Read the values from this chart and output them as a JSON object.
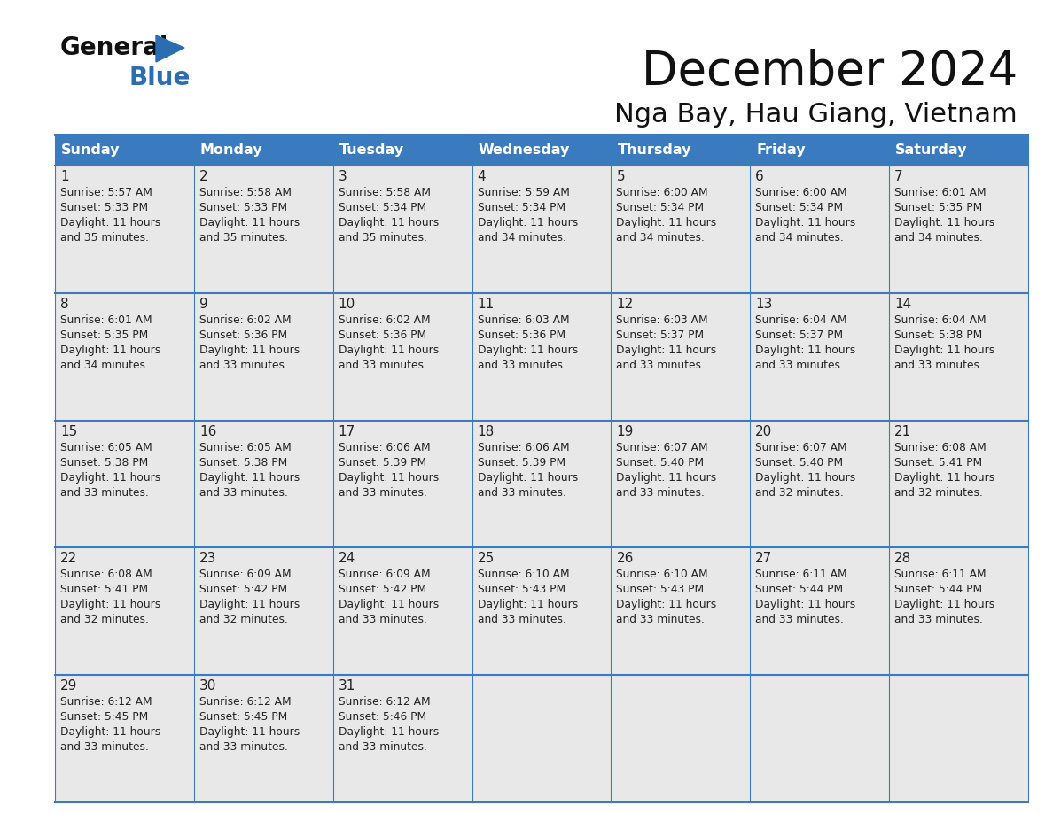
{
  "title": "December 2024",
  "subtitle": "Nga Bay, Hau Giang, Vietnam",
  "header_color": "#3a7bbf",
  "header_text_color": "#ffffff",
  "cell_bg_light": "#e8e8e8",
  "cell_bg_white": "#ffffff",
  "border_color": "#3a7bbf",
  "text_color": "#222222",
  "logo_black": "#111111",
  "logo_blue": "#2a6db0",
  "days_of_week": [
    "Sunday",
    "Monday",
    "Tuesday",
    "Wednesday",
    "Thursday",
    "Friday",
    "Saturday"
  ],
  "calendar_data": [
    [
      {
        "day": 1,
        "sunrise": "5:57 AM",
        "sunset": "5:33 PM",
        "daylight": "11 hours and 35 minutes."
      },
      {
        "day": 2,
        "sunrise": "5:58 AM",
        "sunset": "5:33 PM",
        "daylight": "11 hours and 35 minutes."
      },
      {
        "day": 3,
        "sunrise": "5:58 AM",
        "sunset": "5:34 PM",
        "daylight": "11 hours and 35 minutes."
      },
      {
        "day": 4,
        "sunrise": "5:59 AM",
        "sunset": "5:34 PM",
        "daylight": "11 hours and 34 minutes."
      },
      {
        "day": 5,
        "sunrise": "6:00 AM",
        "sunset": "5:34 PM",
        "daylight": "11 hours and 34 minutes."
      },
      {
        "day": 6,
        "sunrise": "6:00 AM",
        "sunset": "5:34 PM",
        "daylight": "11 hours and 34 minutes."
      },
      {
        "day": 7,
        "sunrise": "6:01 AM",
        "sunset": "5:35 PM",
        "daylight": "11 hours and 34 minutes."
      }
    ],
    [
      {
        "day": 8,
        "sunrise": "6:01 AM",
        "sunset": "5:35 PM",
        "daylight": "11 hours and 34 minutes."
      },
      {
        "day": 9,
        "sunrise": "6:02 AM",
        "sunset": "5:36 PM",
        "daylight": "11 hours and 33 minutes."
      },
      {
        "day": 10,
        "sunrise": "6:02 AM",
        "sunset": "5:36 PM",
        "daylight": "11 hours and 33 minutes."
      },
      {
        "day": 11,
        "sunrise": "6:03 AM",
        "sunset": "5:36 PM",
        "daylight": "11 hours and 33 minutes."
      },
      {
        "day": 12,
        "sunrise": "6:03 AM",
        "sunset": "5:37 PM",
        "daylight": "11 hours and 33 minutes."
      },
      {
        "day": 13,
        "sunrise": "6:04 AM",
        "sunset": "5:37 PM",
        "daylight": "11 hours and 33 minutes."
      },
      {
        "day": 14,
        "sunrise": "6:04 AM",
        "sunset": "5:38 PM",
        "daylight": "11 hours and 33 minutes."
      }
    ],
    [
      {
        "day": 15,
        "sunrise": "6:05 AM",
        "sunset": "5:38 PM",
        "daylight": "11 hours and 33 minutes."
      },
      {
        "day": 16,
        "sunrise": "6:05 AM",
        "sunset": "5:38 PM",
        "daylight": "11 hours and 33 minutes."
      },
      {
        "day": 17,
        "sunrise": "6:06 AM",
        "sunset": "5:39 PM",
        "daylight": "11 hours and 33 minutes."
      },
      {
        "day": 18,
        "sunrise": "6:06 AM",
        "sunset": "5:39 PM",
        "daylight": "11 hours and 33 minutes."
      },
      {
        "day": 19,
        "sunrise": "6:07 AM",
        "sunset": "5:40 PM",
        "daylight": "11 hours and 33 minutes."
      },
      {
        "day": 20,
        "sunrise": "6:07 AM",
        "sunset": "5:40 PM",
        "daylight": "11 hours and 32 minutes."
      },
      {
        "day": 21,
        "sunrise": "6:08 AM",
        "sunset": "5:41 PM",
        "daylight": "11 hours and 32 minutes."
      }
    ],
    [
      {
        "day": 22,
        "sunrise": "6:08 AM",
        "sunset": "5:41 PM",
        "daylight": "11 hours and 32 minutes."
      },
      {
        "day": 23,
        "sunrise": "6:09 AM",
        "sunset": "5:42 PM",
        "daylight": "11 hours and 32 minutes."
      },
      {
        "day": 24,
        "sunrise": "6:09 AM",
        "sunset": "5:42 PM",
        "daylight": "11 hours and 33 minutes."
      },
      {
        "day": 25,
        "sunrise": "6:10 AM",
        "sunset": "5:43 PM",
        "daylight": "11 hours and 33 minutes."
      },
      {
        "day": 26,
        "sunrise": "6:10 AM",
        "sunset": "5:43 PM",
        "daylight": "11 hours and 33 minutes."
      },
      {
        "day": 27,
        "sunrise": "6:11 AM",
        "sunset": "5:44 PM",
        "daylight": "11 hours and 33 minutes."
      },
      {
        "day": 28,
        "sunrise": "6:11 AM",
        "sunset": "5:44 PM",
        "daylight": "11 hours and 33 minutes."
      }
    ],
    [
      {
        "day": 29,
        "sunrise": "6:12 AM",
        "sunset": "5:45 PM",
        "daylight": "11 hours and 33 minutes."
      },
      {
        "day": 30,
        "sunrise": "6:12 AM",
        "sunset": "5:45 PM",
        "daylight": "11 hours and 33 minutes."
      },
      {
        "day": 31,
        "sunrise": "6:12 AM",
        "sunset": "5:46 PM",
        "daylight": "11 hours and 33 minutes."
      },
      null,
      null,
      null,
      null
    ]
  ]
}
